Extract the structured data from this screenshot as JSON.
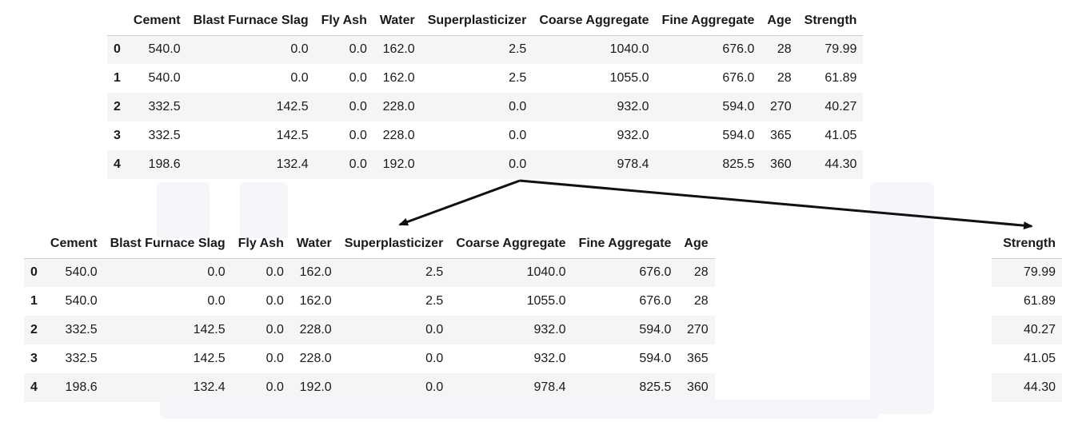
{
  "top_table": {
    "columns": [
      "",
      "Cement",
      "Blast Furnace Slag",
      "Fly Ash",
      "Water",
      "Superplasticizer",
      "Coarse Aggregate",
      "Fine Aggregate",
      "Age",
      "Strength"
    ],
    "rows": [
      [
        "0",
        "540.0",
        "0.0",
        "0.0",
        "162.0",
        "2.5",
        "1040.0",
        "676.0",
        "28",
        "79.99"
      ],
      [
        "1",
        "540.0",
        "0.0",
        "0.0",
        "162.0",
        "2.5",
        "1055.0",
        "676.0",
        "28",
        "61.89"
      ],
      [
        "2",
        "332.5",
        "142.5",
        "0.0",
        "228.0",
        "0.0",
        "932.0",
        "594.0",
        "270",
        "40.27"
      ],
      [
        "3",
        "332.5",
        "142.5",
        "0.0",
        "228.0",
        "0.0",
        "932.0",
        "594.0",
        "365",
        "41.05"
      ],
      [
        "4",
        "198.6",
        "132.4",
        "0.0",
        "192.0",
        "0.0",
        "978.4",
        "825.5",
        "360",
        "44.30"
      ]
    ]
  },
  "x_table": {
    "columns": [
      "",
      "Cement",
      "Blast Furnace Slag",
      "Fly Ash",
      "Water",
      "Superplasticizer",
      "Coarse Aggregate",
      "Fine Aggregate",
      "Age"
    ],
    "rows": [
      [
        "0",
        "540.0",
        "0.0",
        "0.0",
        "162.0",
        "2.5",
        "1040.0",
        "676.0",
        "28"
      ],
      [
        "1",
        "540.0",
        "0.0",
        "0.0",
        "162.0",
        "2.5",
        "1055.0",
        "676.0",
        "28"
      ],
      [
        "2",
        "332.5",
        "142.5",
        "0.0",
        "228.0",
        "0.0",
        "932.0",
        "594.0",
        "270"
      ],
      [
        "3",
        "332.5",
        "142.5",
        "0.0",
        "228.0",
        "0.0",
        "932.0",
        "594.0",
        "365"
      ],
      [
        "4",
        "198.6",
        "132.4",
        "0.0",
        "192.0",
        "0.0",
        "978.4",
        "825.5",
        "360"
      ]
    ]
  },
  "y_table": {
    "columns": [
      "Strength"
    ],
    "rows": [
      [
        "79.99"
      ],
      [
        "61.89"
      ],
      [
        "40.27"
      ],
      [
        "41.05"
      ],
      [
        "44.30"
      ]
    ]
  },
  "colors": {
    "arrow": "#111111",
    "stripe": "#f5f5f5",
    "watermark": "#f4f6f9"
  }
}
